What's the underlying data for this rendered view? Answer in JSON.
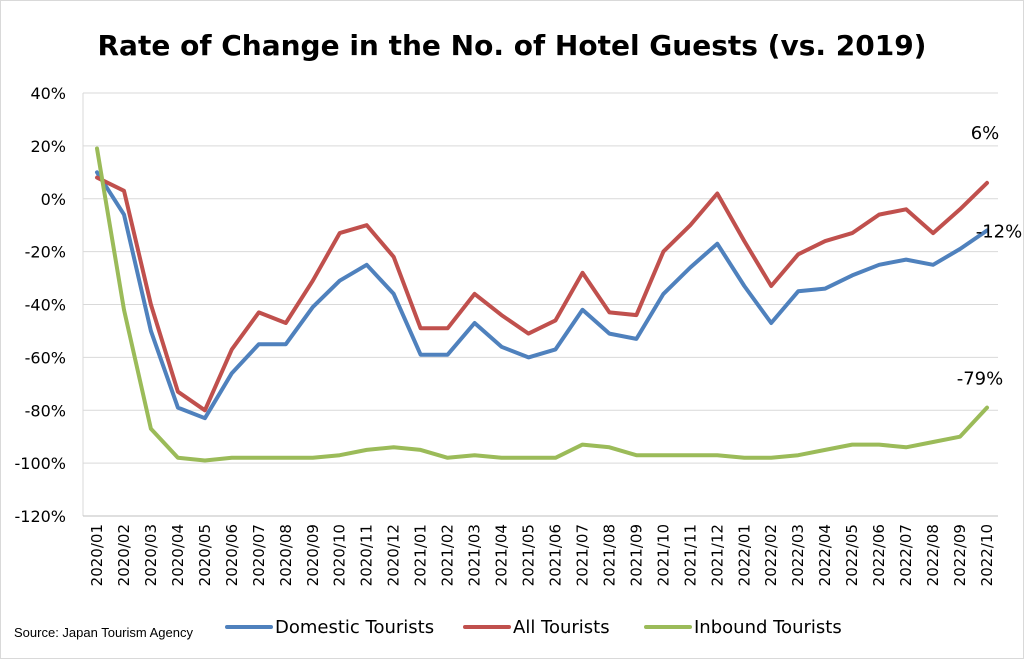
{
  "chart_data": {
    "type": "line",
    "title": "Rate of Change in the No. of Hotel Guests (vs. 2019)",
    "ylim": [
      -120,
      40
    ],
    "yticks": [
      40,
      20,
      0,
      -20,
      -40,
      -60,
      -80,
      -100,
      -120
    ],
    "ytick_labels": [
      "40%",
      "20%",
      "0%",
      "-20%",
      "-40%",
      "-60%",
      "-80%",
      "-100%",
      "-120%"
    ],
    "grid": true,
    "legend_position": "bottom",
    "categories": [
      "2020/01",
      "2020/02",
      "2020/03",
      "2020/04",
      "2020/05",
      "2020/06",
      "2020/07",
      "2020/08",
      "2020/09",
      "2020/10",
      "2020/11",
      "2020/12",
      "2021/01",
      "2021/02",
      "2021/03",
      "2021/04",
      "2021/05",
      "2021/06",
      "2021/07",
      "2021/08",
      "2021/09",
      "2021/10",
      "2021/11",
      "2021/12",
      "2022/01",
      "2022/02",
      "2022/03",
      "2022/04",
      "2022/05",
      "2022/06",
      "2022/07",
      "2022/08",
      "2022/09",
      "2022/10"
    ],
    "series": [
      {
        "name": "Domestic Tourists",
        "color": "#4f81bd",
        "values": [
          10,
          -6,
          -50,
          -79,
          -83,
          -66,
          -55,
          -55,
          -41,
          -31,
          -25,
          -36,
          -59,
          -59,
          -47,
          -56,
          -60,
          -57,
          -42,
          -51,
          -53,
          -36,
          -26,
          -17,
          -33,
          -47,
          -35,
          -34,
          -29,
          -25,
          -23,
          -25,
          -19,
          -12
        ]
      },
      {
        "name": "All Tourists",
        "color": "#c0504d",
        "values": [
          8,
          3,
          -40,
          -73,
          -80,
          -57,
          -43,
          -47,
          -31,
          -13,
          -10,
          -22,
          -49,
          -49,
          -36,
          -44,
          -51,
          -46,
          -28,
          -43,
          -44,
          -20,
          -10,
          2,
          -16,
          -33,
          -21,
          -16,
          -13,
          -6,
          -4,
          -13,
          -4,
          6
        ]
      },
      {
        "name": "Inbound Tourists",
        "color": "#9bbb59",
        "values": [
          19,
          -42,
          -87,
          -98,
          -99,
          -98,
          -98,
          -98,
          -98,
          -97,
          -95,
          -94,
          -95,
          -98,
          -97,
          -98,
          -98,
          -98,
          -93,
          -94,
          -97,
          -97,
          -97,
          -97,
          -98,
          -98,
          -97,
          -95,
          -93,
          -93,
          -94,
          -92,
          -90,
          -79
        ]
      }
    ],
    "annotations": [
      {
        "text": "6%",
        "series": 1,
        "index": 33
      },
      {
        "text": "-12%",
        "series": 0,
        "index": 33
      },
      {
        "text": "-79%",
        "series": 2,
        "index": 33
      }
    ]
  },
  "source": "Source: Japan Tourism Agency"
}
